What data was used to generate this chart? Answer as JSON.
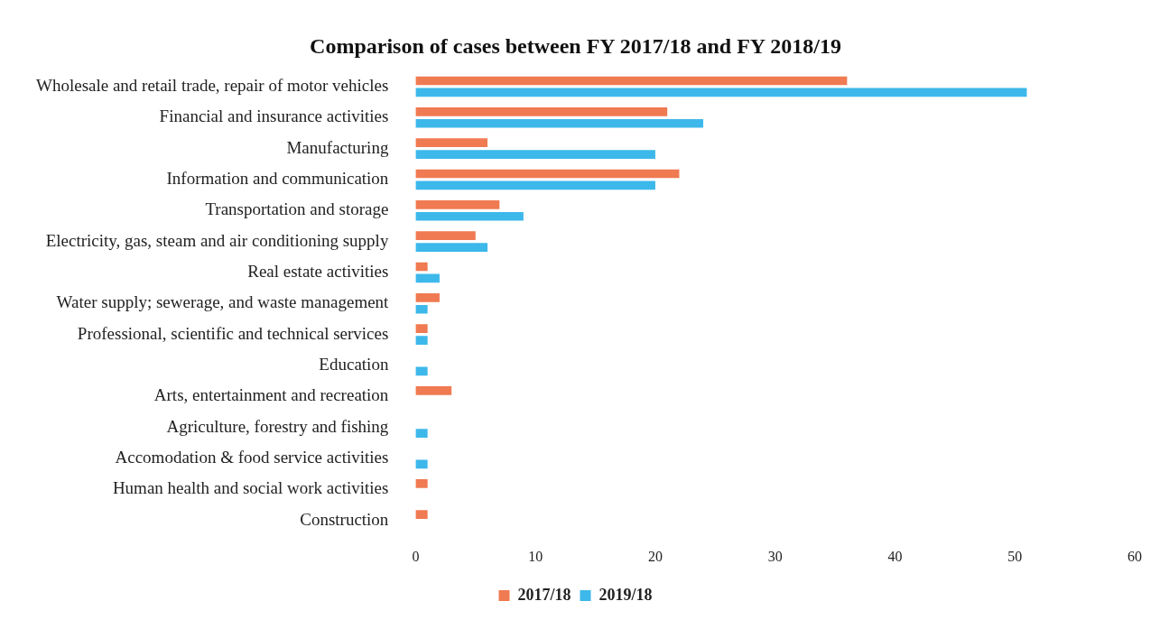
{
  "chart_data": {
    "type": "bar",
    "orientation": "horizontal",
    "title": "Comparison of cases between FY 2017/18 and FY 2018/19",
    "categories": [
      "Wholesale and retail trade, repair of motor vehicles",
      "Financial and insurance activities",
      "Manufacturing",
      "Information and communication",
      "Transportation and storage",
      "Electricity, gas, steam and air conditioning supply",
      "Real estate activities",
      "Water supply; sewerage, and waste management",
      "Professional, scientific and technical services",
      "Education",
      "Arts, entertainment and recreation",
      "Agriculture, forestry and fishing",
      "Accomodation & food service activities",
      "Human health and social work activities",
      "Construction"
    ],
    "series": [
      {
        "name": "2017/18",
        "color": "#f07a52",
        "values": [
          36,
          21,
          6,
          22,
          7,
          5,
          1,
          2,
          1,
          0,
          3,
          0,
          0,
          1,
          1
        ]
      },
      {
        "name": "2019/18",
        "color": "#3db8ea",
        "values": [
          51,
          24,
          20,
          20,
          9,
          6,
          2,
          1,
          1,
          1,
          0,
          1,
          1,
          0,
          0
        ]
      }
    ],
    "xlim": [
      0,
      60
    ],
    "xticks": [
      0,
      10,
      20,
      30,
      40,
      50,
      60
    ],
    "grid": false,
    "legend": "bottom"
  }
}
